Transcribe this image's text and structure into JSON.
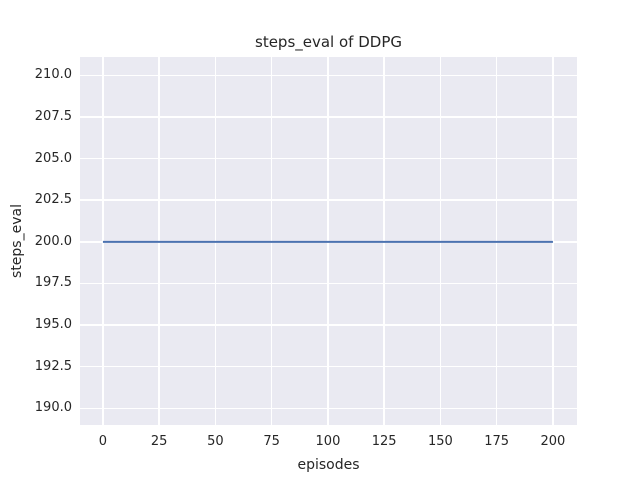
{
  "chart_data": {
    "type": "line",
    "title": "steps_eval of DDPG",
    "xlabel": "episodes",
    "ylabel": "steps_eval",
    "x_ticks": {
      "values": [
        0,
        25,
        50,
        75,
        100,
        125,
        150,
        175,
        200
      ],
      "labels": [
        "0",
        "25",
        "50",
        "75",
        "100",
        "125",
        "150",
        "175",
        "200"
      ]
    },
    "y_ticks": {
      "values": [
        190.0,
        192.5,
        195.0,
        197.5,
        200.0,
        202.5,
        205.0,
        207.5,
        210.0
      ],
      "labels": [
        "190.0",
        "192.5",
        "195.0",
        "197.5",
        "200.0",
        "202.5",
        "205.0",
        "207.5",
        "210.0"
      ]
    },
    "xlim": [
      -10.2,
      210.7
    ],
    "ylim": [
      189.0,
      211.1
    ],
    "grid": true,
    "legend": false,
    "series": [
      {
        "name": "steps_eval",
        "color": "#4C72B0",
        "x": [
          0,
          200
        ],
        "y": [
          200,
          200
        ]
      }
    ],
    "style": {
      "figure_background": "#FFFFFF",
      "plot_background": "#EAEAF2",
      "grid_color": "#FFFFFF",
      "text_color": "#262626",
      "line_width": 2
    }
  }
}
